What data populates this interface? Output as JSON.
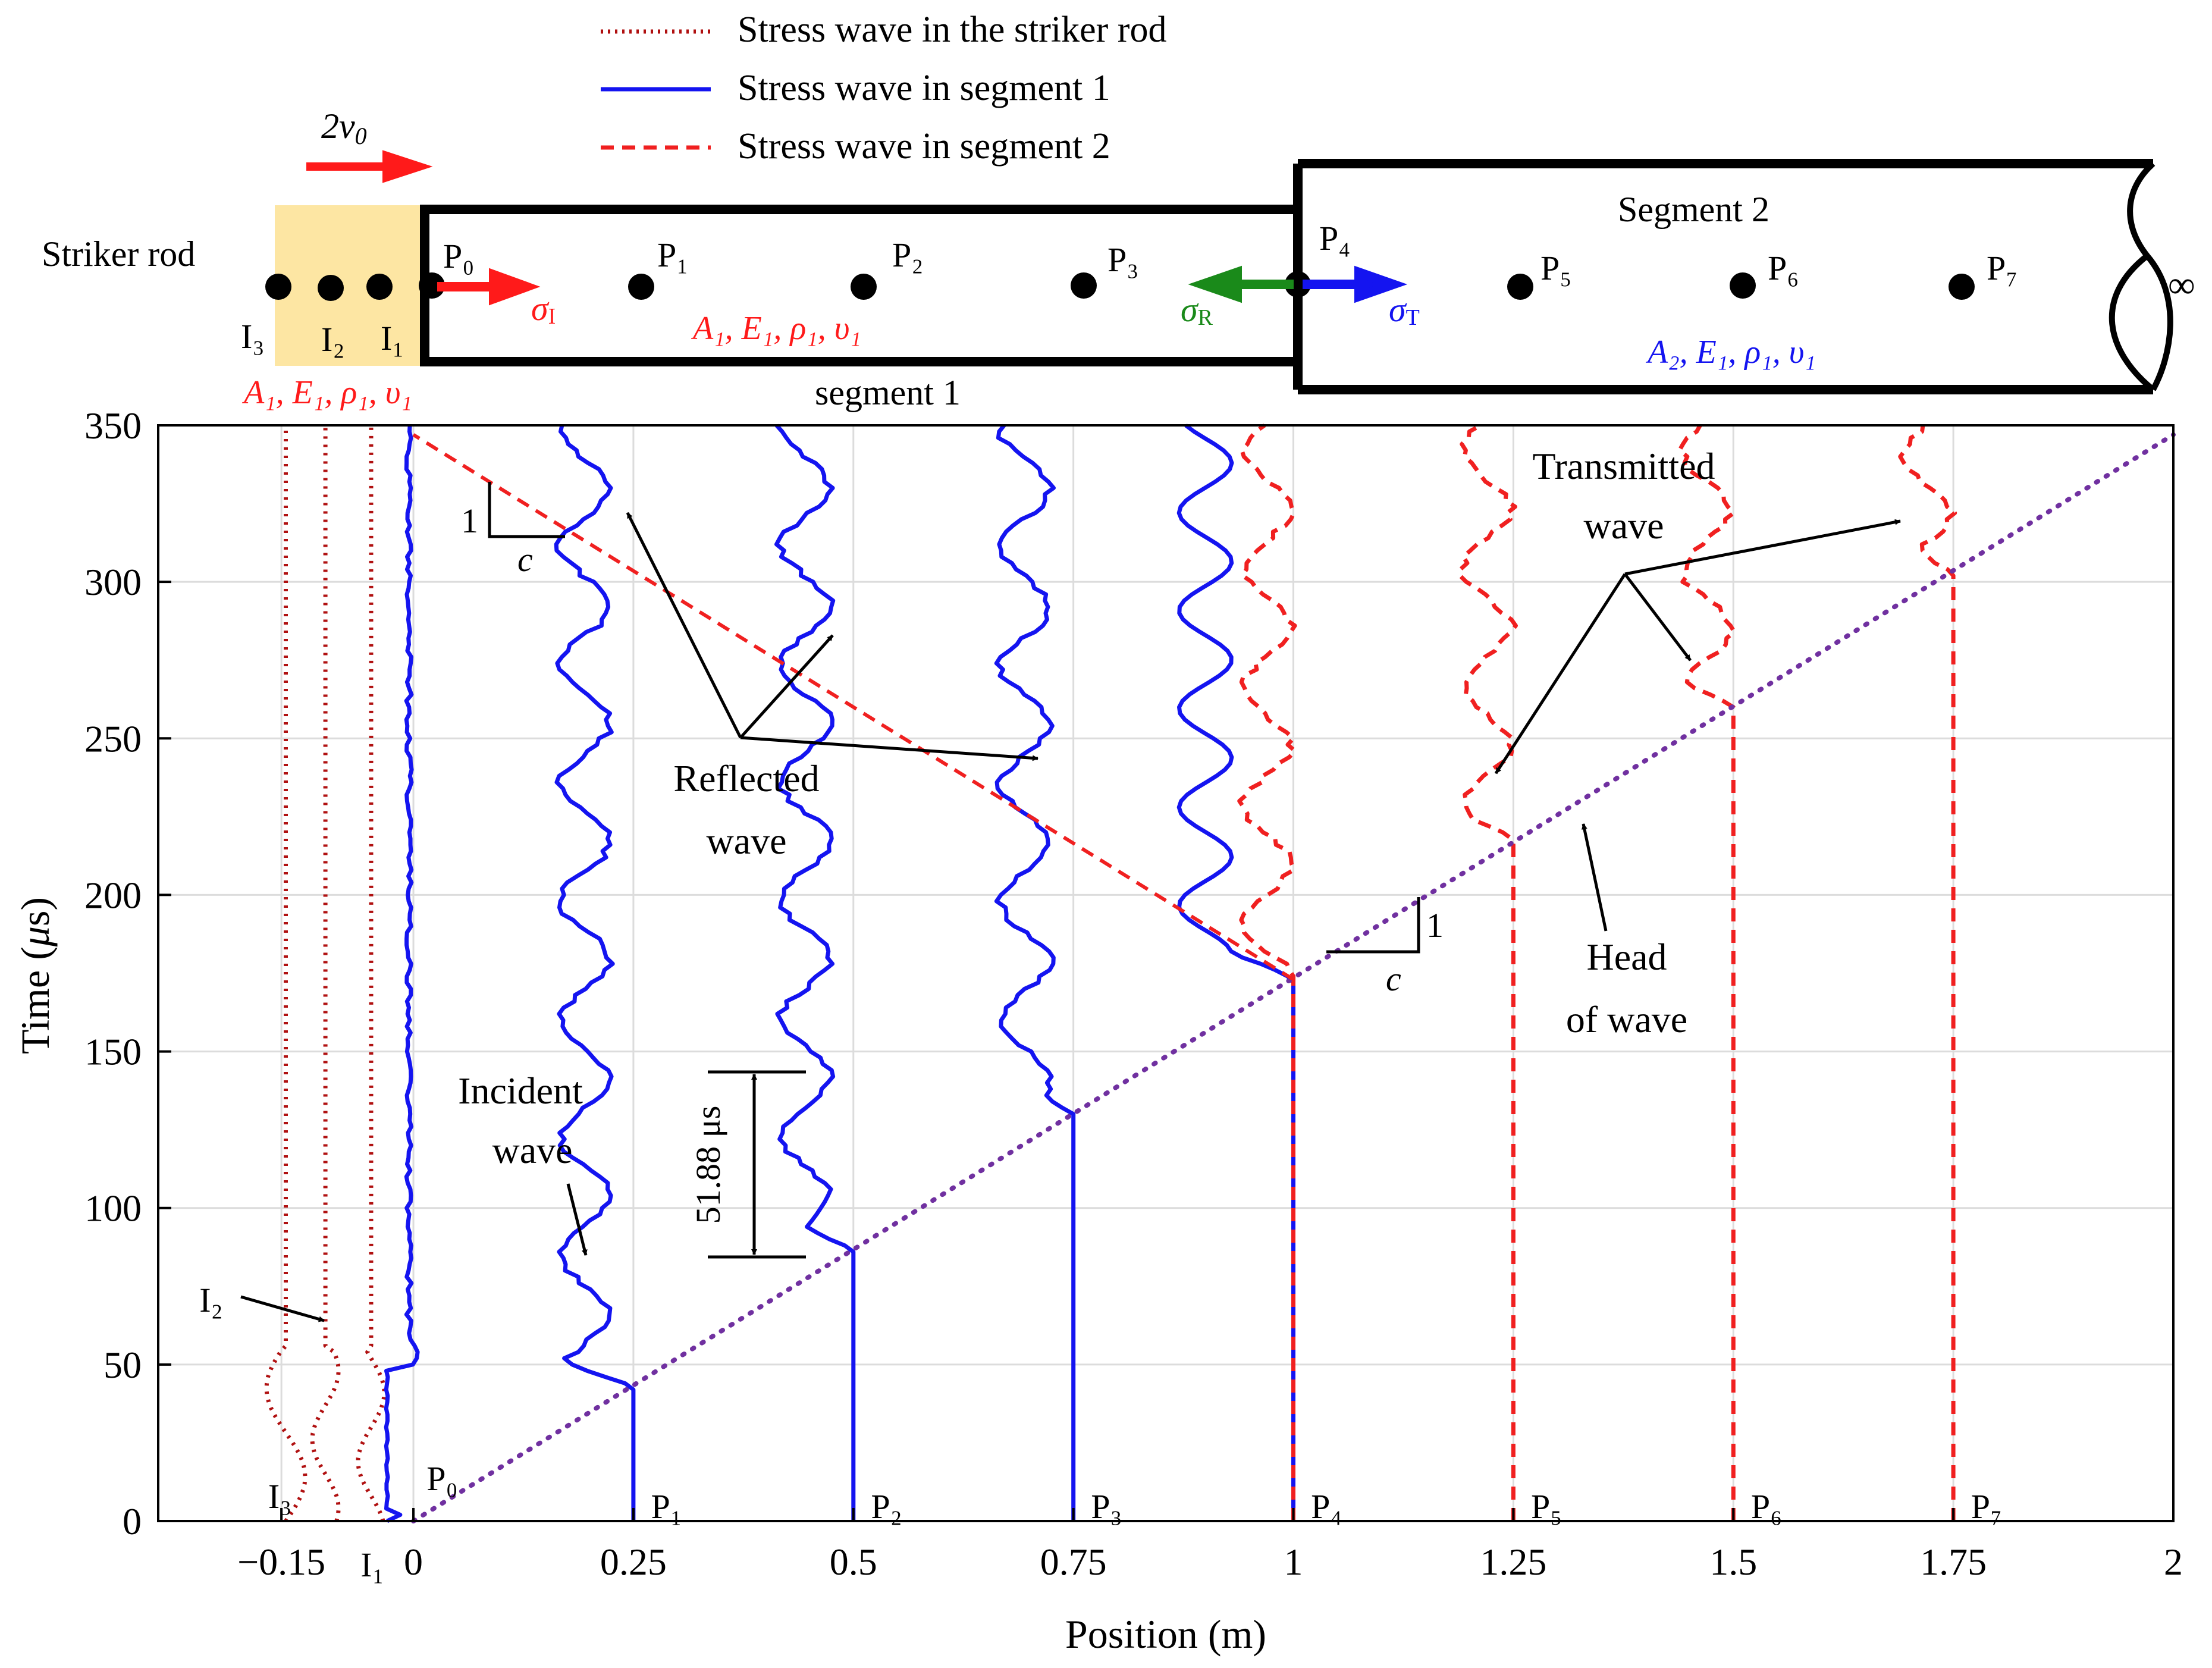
{
  "colors": {
    "striker": "#b01010",
    "seg1": "#1414f0",
    "seg2": "#f02020",
    "head": "#7030a0",
    "reflected_arrow": "#1a8a1a",
    "striker_fill": "#fde6a3",
    "grid": "#dcdcdc"
  },
  "legend": {
    "striker": "Stress wave in the striker rod",
    "seg1": "Stress wave in segment 1",
    "seg2": "Stress wave in segment 2"
  },
  "schematic": {
    "velocity": "2v",
    "velocity_sub": "0",
    "striker_label": "Striker rod",
    "segment1_label": "segment 1",
    "segment2_label": "Segment 2",
    "infinity": "∞",
    "sigma": "σ",
    "sigma_I_sub": "I",
    "sigma_R_sub": "R",
    "sigma_T_sub": "T",
    "props_striker": "A₁, E₁, ρ₁, υ₁",
    "props_seg1": "A₁, E₁, ρ₁, υ₁",
    "props_seg2": "A₂, E₁, ρ₁, υ₁",
    "points": {
      "P0": "P₀",
      "P1": "P₁",
      "P2": "P₂",
      "P3": "P₃",
      "P4": "P₄",
      "P5": "P₅",
      "P6": "P₆",
      "P7": "P₇",
      "I1": "I₁",
      "I2": "I₂",
      "I3": "I₃"
    }
  },
  "chart_data": {
    "type": "line",
    "xlabel": "Position (m)",
    "ylabel_prefix": "Time (",
    "ylabel_mu": "μ",
    "ylabel_suffix": "s)",
    "xlim": [
      -0.29,
      2
    ],
    "ylim": [
      0,
      350
    ],
    "x_ticks": [
      {
        "v": -0.15,
        "label": "−0.15"
      },
      {
        "v": 0,
        "label": "0"
      },
      {
        "v": 0.25,
        "label": "0.25"
      },
      {
        "v": 0.5,
        "label": "0.5"
      },
      {
        "v": 0.75,
        "label": "0.75"
      },
      {
        "v": 1,
        "label": "1"
      },
      {
        "v": 1.25,
        "label": "1.25"
      },
      {
        "v": 1.5,
        "label": "1.5"
      },
      {
        "v": 1.75,
        "label": "1.75"
      },
      {
        "v": 2,
        "label": "2"
      }
    ],
    "y_ticks": [
      {
        "v": 0,
        "label": "0"
      },
      {
        "v": 50,
        "label": "50"
      },
      {
        "v": 100,
        "label": "100"
      },
      {
        "v": 150,
        "label": "150"
      },
      {
        "v": 200,
        "label": "200"
      },
      {
        "v": 250,
        "label": "250"
      },
      {
        "v": 300,
        "label": "300"
      },
      {
        "v": 350,
        "label": "350"
      }
    ],
    "series": [
      {
        "name": "I3",
        "group": "striker",
        "x0": -0.145,
        "arrival": 0
      },
      {
        "name": "I2",
        "group": "striker",
        "x0": -0.1,
        "arrival": 0
      },
      {
        "name": "I1",
        "group": "striker",
        "x0": -0.048,
        "arrival": 0
      },
      {
        "name": "P0",
        "group": "seg1",
        "x0": 0,
        "arrival": 0
      },
      {
        "name": "P1",
        "group": "seg1",
        "x0": 0.25,
        "arrival": 43
      },
      {
        "name": "P2",
        "group": "seg1",
        "x0": 0.5,
        "arrival": 87
      },
      {
        "name": "P3",
        "group": "seg1",
        "x0": 0.75,
        "arrival": 130
      },
      {
        "name": "P4",
        "group": "seg1",
        "x0": 1.0,
        "arrival": 173
      },
      {
        "name": "P4",
        "group": "seg2",
        "x0": 1.0,
        "arrival": 173
      },
      {
        "name": "P5",
        "group": "seg2",
        "x0": 1.25,
        "arrival": 217
      },
      {
        "name": "P6",
        "group": "seg2",
        "x0": 1.5,
        "arrival": 260
      },
      {
        "name": "P7",
        "group": "seg2",
        "x0": 1.75,
        "arrival": 303
      }
    ],
    "head_of_wave": {
      "x": [
        0,
        2
      ],
      "y": [
        0,
        347
      ]
    },
    "reflected_front": {
      "x": [
        1,
        0
      ],
      "y": [
        173,
        347
      ]
    },
    "annotations": {
      "incident": [
        "Incident",
        "wave"
      ],
      "reflected": [
        "Reflected",
        "wave"
      ],
      "transmitted": [
        "Transmitted",
        "wave"
      ],
      "head": [
        "Head",
        "of wave"
      ],
      "duration": "51.88 μs",
      "duration_range": [
        84,
        144
      ],
      "slope_one": "1",
      "slope_c": "c",
      "I2_label": "I₂"
    }
  }
}
